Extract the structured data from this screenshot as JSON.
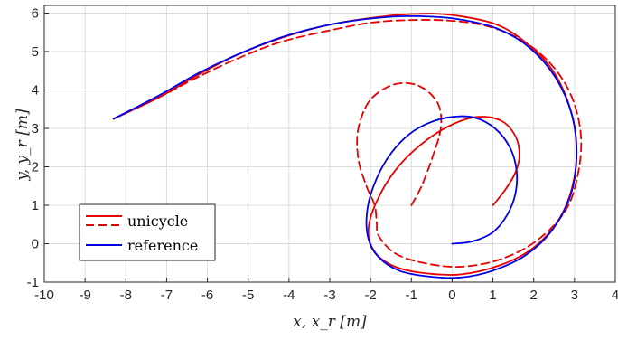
{
  "chart_data": {
    "type": "line",
    "title": "",
    "xlabel": "x, x_r [m]",
    "ylabel": "y, y_r [m]",
    "xlim": [
      -10,
      4
    ],
    "ylim": [
      -1,
      6.2
    ],
    "xticks": [
      -10,
      -9,
      -8,
      -7,
      -6,
      -5,
      -4,
      -3,
      -2,
      -1,
      0,
      1,
      2,
      3,
      4
    ],
    "yticks": [
      -1,
      0,
      1,
      2,
      3,
      4,
      5,
      6
    ],
    "xtick_labels": [
      "-10",
      "-9",
      "-8",
      "-7",
      "-6",
      "-5",
      "-4",
      "-3",
      "-2",
      "-1",
      "0",
      "1",
      "2",
      "3",
      "4"
    ],
    "ytick_labels": [
      "-1",
      "0",
      "1",
      "2",
      "3",
      "4",
      "5",
      "6"
    ],
    "grid": true,
    "legend_position": "bottom-left",
    "legend": [
      {
        "label": "unicycle",
        "color": "#e80000",
        "styles": [
          "solid",
          "dashed"
        ]
      },
      {
        "label": "reference",
        "color": "#0000e6",
        "styles": [
          "solid"
        ]
      }
    ],
    "series": [
      {
        "name": "unicycle",
        "color": "#e80000",
        "dash": "solid",
        "points": [
          [
            1.0,
            1.0
          ],
          [
            1.3,
            1.4
          ],
          [
            1.55,
            1.85
          ],
          [
            1.65,
            2.3
          ],
          [
            1.55,
            2.8
          ],
          [
            1.2,
            3.2
          ],
          [
            0.6,
            3.3
          ],
          [
            -0.1,
            3.05
          ],
          [
            -0.8,
            2.55
          ],
          [
            -1.4,
            1.9
          ],
          [
            -1.85,
            1.1
          ],
          [
            -2.05,
            0.4
          ],
          [
            -1.95,
            -0.15
          ],
          [
            -1.5,
            -0.55
          ],
          [
            -0.8,
            -0.75
          ],
          [
            0.2,
            -0.8
          ],
          [
            1.2,
            -0.55
          ],
          [
            2.0,
            -0.1
          ],
          [
            2.6,
            0.6
          ],
          [
            2.95,
            1.5
          ],
          [
            3.05,
            2.5
          ],
          [
            2.9,
            3.5
          ],
          [
            2.5,
            4.45
          ],
          [
            1.9,
            5.15
          ],
          [
            1.1,
            5.7
          ],
          [
            0.0,
            5.95
          ],
          [
            -0.9,
            5.98
          ],
          [
            -1.8,
            5.9
          ],
          [
            -3.0,
            5.7
          ],
          [
            -4.2,
            5.35
          ],
          [
            -5.3,
            4.9
          ],
          [
            -6.3,
            4.35
          ],
          [
            -7.2,
            3.8
          ],
          [
            -8.3,
            3.25
          ]
        ]
      },
      {
        "name": "unicycle",
        "color": "#e80000",
        "dash": "dashed",
        "points": [
          [
            -1.0,
            1.0
          ],
          [
            -0.75,
            1.5
          ],
          [
            -0.5,
            2.2
          ],
          [
            -0.28,
            3.0
          ],
          [
            -0.35,
            3.65
          ],
          [
            -0.8,
            4.1
          ],
          [
            -1.4,
            4.15
          ],
          [
            -2.0,
            3.75
          ],
          [
            -2.3,
            3.0
          ],
          [
            -2.3,
            2.2
          ],
          [
            -2.1,
            1.5
          ],
          [
            -1.9,
            1.0
          ],
          [
            -1.85,
            0.55
          ],
          [
            -1.8,
            0.2
          ],
          [
            -1.4,
            -0.25
          ],
          [
            -0.7,
            -0.5
          ],
          [
            0.2,
            -0.6
          ],
          [
            1.2,
            -0.4
          ],
          [
            2.1,
            0.1
          ],
          [
            2.8,
            0.9
          ],
          [
            3.1,
            1.9
          ],
          [
            3.15,
            2.9
          ],
          [
            2.9,
            3.9
          ],
          [
            2.4,
            4.7
          ],
          [
            1.7,
            5.3
          ],
          [
            0.9,
            5.65
          ],
          [
            0.0,
            5.8
          ],
          [
            -1.0,
            5.82
          ],
          [
            -2.0,
            5.75
          ],
          [
            -3.0,
            5.55
          ],
          [
            -4.2,
            5.25
          ],
          [
            -5.3,
            4.8
          ],
          [
            -6.3,
            4.3
          ],
          [
            -7.2,
            3.8
          ],
          [
            -8.3,
            3.25
          ]
        ]
      },
      {
        "name": "reference",
        "color": "#0000e6",
        "dash": "solid",
        "points": [
          [
            0.0,
            0.0
          ],
          [
            0.5,
            0.06
          ],
          [
            1.0,
            0.3
          ],
          [
            1.35,
            0.75
          ],
          [
            1.55,
            1.3
          ],
          [
            1.58,
            1.9
          ],
          [
            1.42,
            2.5
          ],
          [
            1.05,
            3.0
          ],
          [
            0.55,
            3.28
          ],
          [
            0.0,
            3.3
          ],
          [
            -0.55,
            3.15
          ],
          [
            -1.05,
            2.85
          ],
          [
            -1.5,
            2.35
          ],
          [
            -1.85,
            1.7
          ],
          [
            -2.07,
            0.95
          ],
          [
            -2.07,
            0.2
          ],
          [
            -1.8,
            -0.35
          ],
          [
            -1.3,
            -0.7
          ],
          [
            -0.6,
            -0.85
          ],
          [
            0.2,
            -0.88
          ],
          [
            1.0,
            -0.7
          ],
          [
            1.8,
            -0.3
          ],
          [
            2.45,
            0.35
          ],
          [
            2.9,
            1.25
          ],
          [
            3.05,
            2.25
          ],
          [
            2.95,
            3.3
          ],
          [
            2.55,
            4.3
          ],
          [
            1.9,
            5.1
          ],
          [
            1.1,
            5.6
          ],
          [
            0.1,
            5.85
          ],
          [
            -0.9,
            5.92
          ],
          [
            -1.8,
            5.88
          ],
          [
            -2.9,
            5.72
          ],
          [
            -4.1,
            5.4
          ],
          [
            -5.2,
            4.95
          ],
          [
            -6.2,
            4.45
          ],
          [
            -7.2,
            3.85
          ],
          [
            -8.3,
            3.25
          ]
        ]
      }
    ]
  }
}
